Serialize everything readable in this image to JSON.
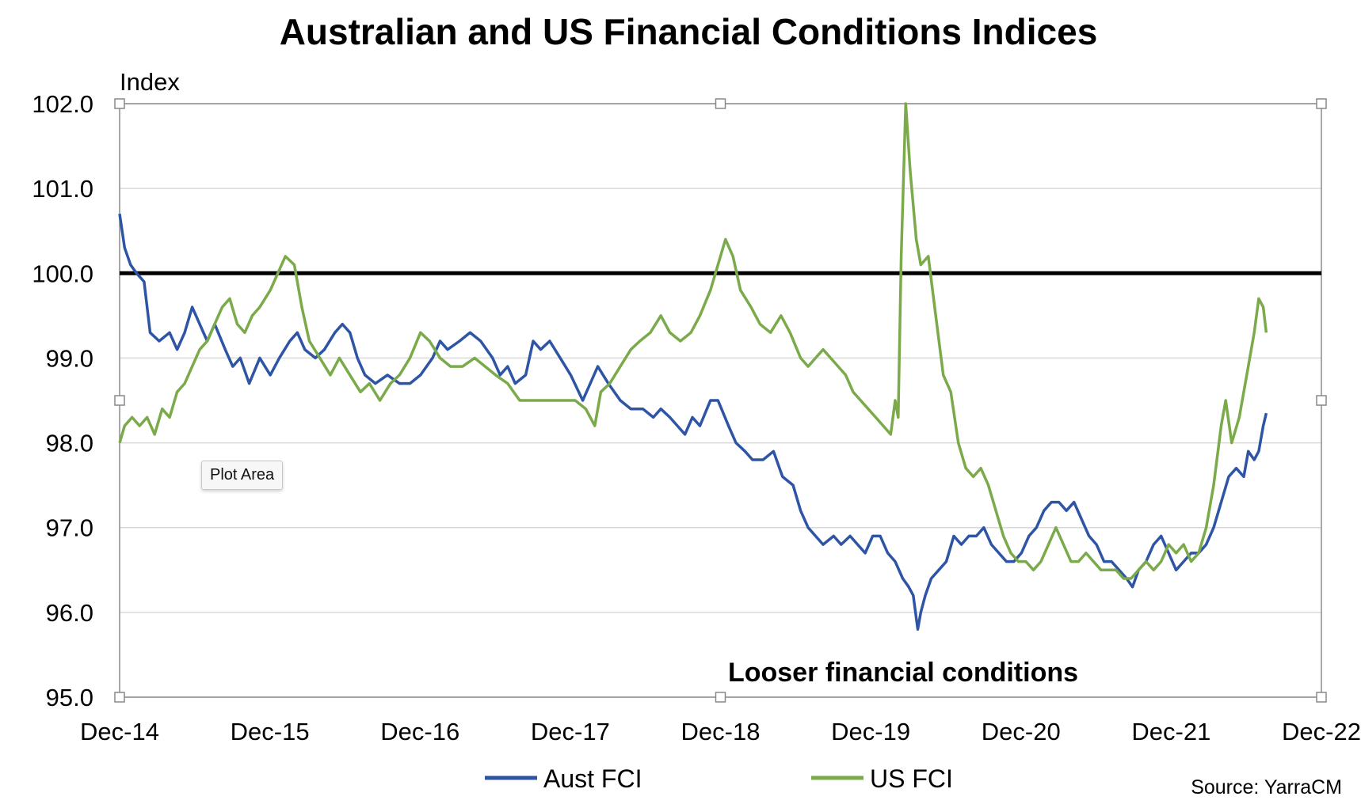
{
  "tooltip": "Plot Area",
  "chart_data": {
    "type": "line",
    "title": "Australian and US Financial Conditions Indices",
    "ylabel": "Index",
    "xlabel": "",
    "ylim": [
      95.0,
      102.0
    ],
    "yticks": [
      "95.0",
      "96.0",
      "97.0",
      "98.0",
      "99.0",
      "100.0",
      "101.0",
      "102.0"
    ],
    "xlim": [
      2014.917,
      2022.917
    ],
    "xticks": [
      {
        "label": "Dec-14",
        "x": 2014.917
      },
      {
        "label": "Dec-15",
        "x": 2015.917
      },
      {
        "label": "Dec-16",
        "x": 2016.917
      },
      {
        "label": "Dec-17",
        "x": 2017.917
      },
      {
        "label": "Dec-18",
        "x": 2018.917
      },
      {
        "label": "Dec-19",
        "x": 2019.917
      },
      {
        "label": "Dec-20",
        "x": 2020.917
      },
      {
        "label": "Dec-21",
        "x": 2021.917
      },
      {
        "label": "Dec-22",
        "x": 2022.917
      }
    ],
    "grid": true,
    "reference_line": {
      "y": 100.0,
      "color": "#000000"
    },
    "annotation": "Looser financial conditions",
    "source": "Source: YarraCM",
    "series": [
      {
        "name": "Aust FCI",
        "color": "#2E55A5",
        "points": [
          [
            2014.917,
            100.7
          ],
          [
            2014.95,
            100.3
          ],
          [
            2014.99,
            100.1
          ],
          [
            2015.03,
            100.0
          ],
          [
            2015.08,
            99.9
          ],
          [
            2015.12,
            99.3
          ],
          [
            2015.18,
            99.2
          ],
          [
            2015.25,
            99.3
          ],
          [
            2015.3,
            99.1
          ],
          [
            2015.35,
            99.3
          ],
          [
            2015.4,
            99.6
          ],
          [
            2015.45,
            99.4
          ],
          [
            2015.5,
            99.2
          ],
          [
            2015.55,
            99.4
          ],
          [
            2015.62,
            99.1
          ],
          [
            2015.67,
            98.9
          ],
          [
            2015.72,
            99.0
          ],
          [
            2015.78,
            98.7
          ],
          [
            2015.85,
            99.0
          ],
          [
            2015.92,
            98.8
          ],
          [
            2015.98,
            99.0
          ],
          [
            2016.05,
            99.2
          ],
          [
            2016.1,
            99.3
          ],
          [
            2016.15,
            99.1
          ],
          [
            2016.22,
            99.0
          ],
          [
            2016.28,
            99.1
          ],
          [
            2016.35,
            99.3
          ],
          [
            2016.4,
            99.4
          ],
          [
            2016.45,
            99.3
          ],
          [
            2016.5,
            99.0
          ],
          [
            2016.55,
            98.8
          ],
          [
            2016.62,
            98.7
          ],
          [
            2016.7,
            98.8
          ],
          [
            2016.78,
            98.7
          ],
          [
            2016.85,
            98.7
          ],
          [
            2016.92,
            98.8
          ],
          [
            2017.0,
            99.0
          ],
          [
            2017.05,
            99.2
          ],
          [
            2017.1,
            99.1
          ],
          [
            2017.18,
            99.2
          ],
          [
            2017.25,
            99.3
          ],
          [
            2017.32,
            99.2
          ],
          [
            2017.4,
            99.0
          ],
          [
            2017.45,
            98.8
          ],
          [
            2017.5,
            98.9
          ],
          [
            2017.55,
            98.7
          ],
          [
            2017.62,
            98.8
          ],
          [
            2017.67,
            99.2
          ],
          [
            2017.72,
            99.1
          ],
          [
            2017.78,
            99.2
          ],
          [
            2017.85,
            99.0
          ],
          [
            2017.92,
            98.8
          ],
          [
            2018.0,
            98.5
          ],
          [
            2018.05,
            98.7
          ],
          [
            2018.1,
            98.9
          ],
          [
            2018.17,
            98.7
          ],
          [
            2018.25,
            98.5
          ],
          [
            2018.32,
            98.4
          ],
          [
            2018.4,
            98.4
          ],
          [
            2018.47,
            98.3
          ],
          [
            2018.52,
            98.4
          ],
          [
            2018.58,
            98.3
          ],
          [
            2018.63,
            98.2
          ],
          [
            2018.68,
            98.1
          ],
          [
            2018.73,
            98.3
          ],
          [
            2018.78,
            98.2
          ],
          [
            2018.85,
            98.5
          ],
          [
            2018.9,
            98.5
          ],
          [
            2018.97,
            98.2
          ],
          [
            2019.02,
            98.0
          ],
          [
            2019.08,
            97.9
          ],
          [
            2019.13,
            97.8
          ],
          [
            2019.2,
            97.8
          ],
          [
            2019.27,
            97.9
          ],
          [
            2019.33,
            97.6
          ],
          [
            2019.4,
            97.5
          ],
          [
            2019.45,
            97.2
          ],
          [
            2019.5,
            97.0
          ],
          [
            2019.55,
            96.9
          ],
          [
            2019.6,
            96.8
          ],
          [
            2019.67,
            96.9
          ],
          [
            2019.72,
            96.8
          ],
          [
            2019.78,
            96.9
          ],
          [
            2019.83,
            96.8
          ],
          [
            2019.88,
            96.7
          ],
          [
            2019.93,
            96.9
          ],
          [
            2019.98,
            96.9
          ],
          [
            2020.03,
            96.7
          ],
          [
            2020.08,
            96.6
          ],
          [
            2020.13,
            96.4
          ],
          [
            2020.17,
            96.3
          ],
          [
            2020.2,
            96.2
          ],
          [
            2020.23,
            95.8
          ],
          [
            2020.25,
            96.0
          ],
          [
            2020.28,
            96.2
          ],
          [
            2020.32,
            96.4
          ],
          [
            2020.37,
            96.5
          ],
          [
            2020.42,
            96.6
          ],
          [
            2020.47,
            96.9
          ],
          [
            2020.52,
            96.8
          ],
          [
            2020.57,
            96.9
          ],
          [
            2020.62,
            96.9
          ],
          [
            2020.67,
            97.0
          ],
          [
            2020.72,
            96.8
          ],
          [
            2020.77,
            96.7
          ],
          [
            2020.82,
            96.6
          ],
          [
            2020.87,
            96.6
          ],
          [
            2020.92,
            96.7
          ],
          [
            2020.97,
            96.9
          ],
          [
            2021.02,
            97.0
          ],
          [
            2021.07,
            97.2
          ],
          [
            2021.12,
            97.3
          ],
          [
            2021.17,
            97.3
          ],
          [
            2021.22,
            97.2
          ],
          [
            2021.27,
            97.3
          ],
          [
            2021.32,
            97.1
          ],
          [
            2021.37,
            96.9
          ],
          [
            2021.42,
            96.8
          ],
          [
            2021.47,
            96.6
          ],
          [
            2021.52,
            96.6
          ],
          [
            2021.57,
            96.5
          ],
          [
            2021.62,
            96.4
          ],
          [
            2021.66,
            96.3
          ],
          [
            2021.7,
            96.5
          ],
          [
            2021.75,
            96.6
          ],
          [
            2021.8,
            96.8
          ],
          [
            2021.85,
            96.9
          ],
          [
            2021.9,
            96.7
          ],
          [
            2021.95,
            96.5
          ],
          [
            2022.0,
            96.6
          ],
          [
            2022.05,
            96.7
          ],
          [
            2022.1,
            96.7
          ],
          [
            2022.15,
            96.8
          ],
          [
            2022.2,
            97.0
          ],
          [
            2022.25,
            97.3
          ],
          [
            2022.3,
            97.6
          ],
          [
            2022.35,
            97.7
          ],
          [
            2022.4,
            97.6
          ],
          [
            2022.43,
            97.9
          ],
          [
            2022.47,
            97.8
          ],
          [
            2022.5,
            97.9
          ],
          [
            2022.53,
            98.2
          ],
          [
            2022.55,
            98.35
          ]
        ]
      },
      {
        "name": "US FCI",
        "color": "#7BAA4A",
        "points": [
          [
            2014.917,
            98.0
          ],
          [
            2014.95,
            98.2
          ],
          [
            2015.0,
            98.3
          ],
          [
            2015.05,
            98.2
          ],
          [
            2015.1,
            98.3
          ],
          [
            2015.15,
            98.1
          ],
          [
            2015.2,
            98.4
          ],
          [
            2015.25,
            98.3
          ],
          [
            2015.3,
            98.6
          ],
          [
            2015.35,
            98.7
          ],
          [
            2015.4,
            98.9
          ],
          [
            2015.45,
            99.1
          ],
          [
            2015.5,
            99.2
          ],
          [
            2015.55,
            99.4
          ],
          [
            2015.6,
            99.6
          ],
          [
            2015.65,
            99.7
          ],
          [
            2015.7,
            99.4
          ],
          [
            2015.75,
            99.3
          ],
          [
            2015.8,
            99.5
          ],
          [
            2015.85,
            99.6
          ],
          [
            2015.92,
            99.8
          ],
          [
            2015.97,
            100.0
          ],
          [
            2016.02,
            100.2
          ],
          [
            2016.08,
            100.1
          ],
          [
            2016.13,
            99.6
          ],
          [
            2016.18,
            99.2
          ],
          [
            2016.25,
            99.0
          ],
          [
            2016.32,
            98.8
          ],
          [
            2016.38,
            99.0
          ],
          [
            2016.45,
            98.8
          ],
          [
            2016.52,
            98.6
          ],
          [
            2016.58,
            98.7
          ],
          [
            2016.65,
            98.5
          ],
          [
            2016.72,
            98.7
          ],
          [
            2016.78,
            98.8
          ],
          [
            2016.85,
            99.0
          ],
          [
            2016.92,
            99.3
          ],
          [
            2016.98,
            99.2
          ],
          [
            2017.05,
            99.0
          ],
          [
            2017.12,
            98.9
          ],
          [
            2017.2,
            98.9
          ],
          [
            2017.28,
            99.0
          ],
          [
            2017.35,
            98.9
          ],
          [
            2017.42,
            98.8
          ],
          [
            2017.5,
            98.7
          ],
          [
            2017.58,
            98.5
          ],
          [
            2017.65,
            98.5
          ],
          [
            2017.72,
            98.5
          ],
          [
            2017.8,
            98.5
          ],
          [
            2017.88,
            98.5
          ],
          [
            2017.95,
            98.5
          ],
          [
            2018.02,
            98.4
          ],
          [
            2018.08,
            98.2
          ],
          [
            2018.12,
            98.6
          ],
          [
            2018.18,
            98.7
          ],
          [
            2018.25,
            98.9
          ],
          [
            2018.32,
            99.1
          ],
          [
            2018.38,
            99.2
          ],
          [
            2018.45,
            99.3
          ],
          [
            2018.52,
            99.5
          ],
          [
            2018.58,
            99.3
          ],
          [
            2018.65,
            99.2
          ],
          [
            2018.72,
            99.3
          ],
          [
            2018.78,
            99.5
          ],
          [
            2018.85,
            99.8
          ],
          [
            2018.9,
            100.1
          ],
          [
            2018.95,
            100.4
          ],
          [
            2019.0,
            100.2
          ],
          [
            2019.05,
            99.8
          ],
          [
            2019.12,
            99.6
          ],
          [
            2019.18,
            99.4
          ],
          [
            2019.25,
            99.3
          ],
          [
            2019.32,
            99.5
          ],
          [
            2019.38,
            99.3
          ],
          [
            2019.45,
            99.0
          ],
          [
            2019.5,
            98.9
          ],
          [
            2019.55,
            99.0
          ],
          [
            2019.6,
            99.1
          ],
          [
            2019.65,
            99.0
          ],
          [
            2019.7,
            98.9
          ],
          [
            2019.75,
            98.8
          ],
          [
            2019.8,
            98.6
          ],
          [
            2019.85,
            98.5
          ],
          [
            2019.9,
            98.4
          ],
          [
            2019.95,
            98.3
          ],
          [
            2020.0,
            98.2
          ],
          [
            2020.05,
            98.1
          ],
          [
            2020.08,
            98.5
          ],
          [
            2020.1,
            98.3
          ],
          [
            2020.12,
            100.2
          ],
          [
            2020.15,
            102.0
          ],
          [
            2020.18,
            101.2
          ],
          [
            2020.22,
            100.4
          ],
          [
            2020.25,
            100.1
          ],
          [
            2020.3,
            100.2
          ],
          [
            2020.35,
            99.5
          ],
          [
            2020.4,
            98.8
          ],
          [
            2020.45,
            98.6
          ],
          [
            2020.5,
            98.0
          ],
          [
            2020.55,
            97.7
          ],
          [
            2020.6,
            97.6
          ],
          [
            2020.65,
            97.7
          ],
          [
            2020.7,
            97.5
          ],
          [
            2020.75,
            97.2
          ],
          [
            2020.8,
            96.9
          ],
          [
            2020.85,
            96.7
          ],
          [
            2020.9,
            96.6
          ],
          [
            2020.95,
            96.6
          ],
          [
            2021.0,
            96.5
          ],
          [
            2021.05,
            96.6
          ],
          [
            2021.1,
            96.8
          ],
          [
            2021.15,
            97.0
          ],
          [
            2021.2,
            96.8
          ],
          [
            2021.25,
            96.6
          ],
          [
            2021.3,
            96.6
          ],
          [
            2021.35,
            96.7
          ],
          [
            2021.4,
            96.6
          ],
          [
            2021.45,
            96.5
          ],
          [
            2021.5,
            96.5
          ],
          [
            2021.55,
            96.5
          ],
          [
            2021.6,
            96.4
          ],
          [
            2021.65,
            96.4
          ],
          [
            2021.7,
            96.5
          ],
          [
            2021.75,
            96.6
          ],
          [
            2021.8,
            96.5
          ],
          [
            2021.85,
            96.6
          ],
          [
            2021.9,
            96.8
          ],
          [
            2021.95,
            96.7
          ],
          [
            2022.0,
            96.8
          ],
          [
            2022.05,
            96.6
          ],
          [
            2022.1,
            96.7
          ],
          [
            2022.15,
            97.0
          ],
          [
            2022.2,
            97.5
          ],
          [
            2022.25,
            98.2
          ],
          [
            2022.28,
            98.5
          ],
          [
            2022.32,
            98.0
          ],
          [
            2022.37,
            98.3
          ],
          [
            2022.42,
            98.8
          ],
          [
            2022.47,
            99.3
          ],
          [
            2022.5,
            99.7
          ],
          [
            2022.53,
            99.6
          ],
          [
            2022.55,
            99.3
          ]
        ]
      }
    ]
  }
}
